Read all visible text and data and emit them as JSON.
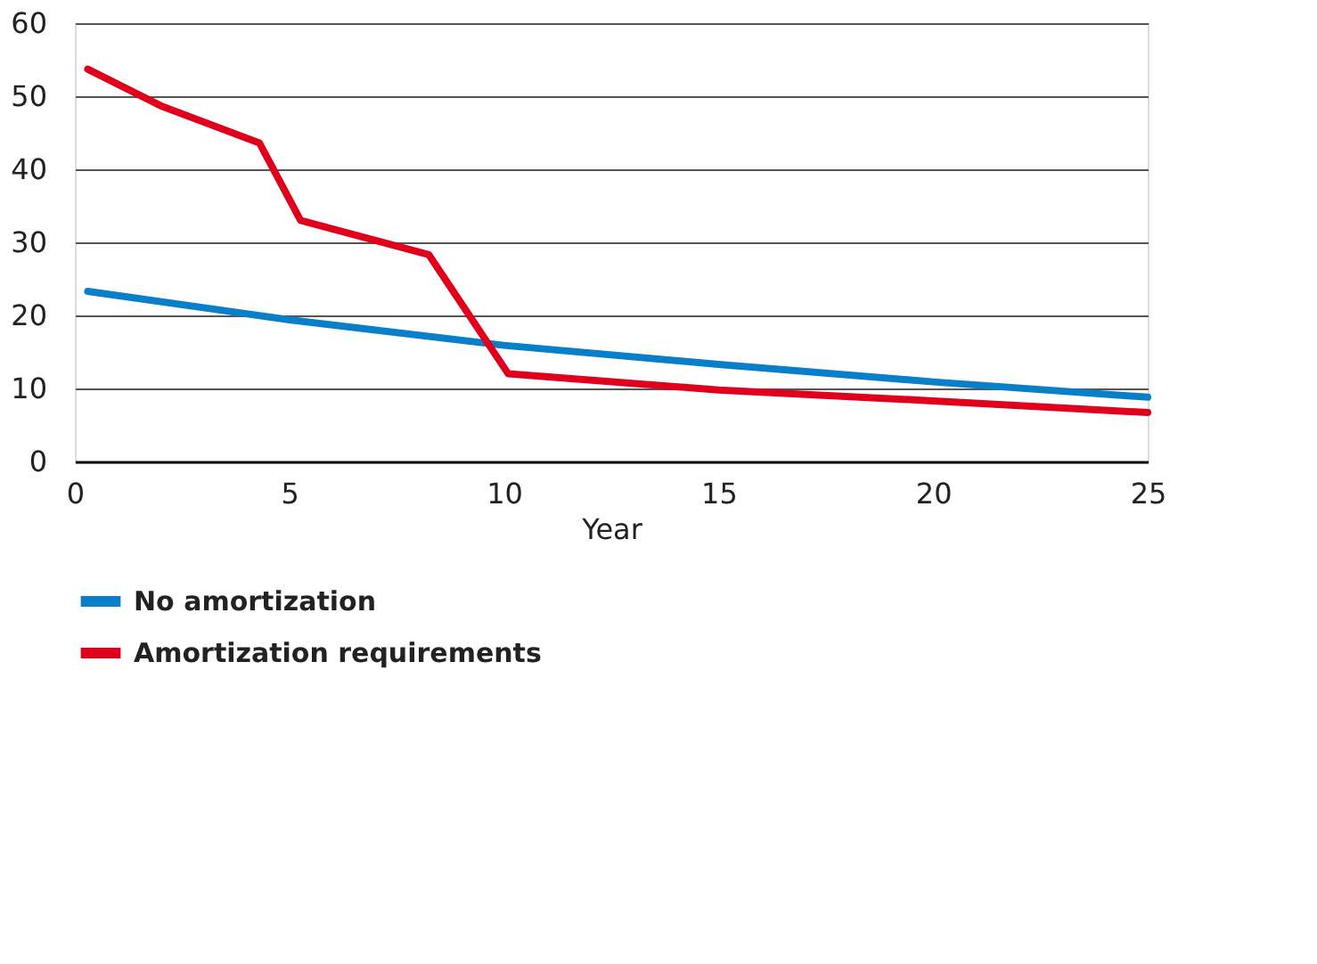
{
  "chart_data": {
    "type": "line",
    "xlabel": "Year",
    "xlim": [
      0,
      25
    ],
    "xticks": [
      0,
      5,
      10,
      15,
      20,
      25
    ],
    "ylim": [
      0,
      60
    ],
    "yticks": [
      0,
      10,
      20,
      30,
      40,
      50,
      60
    ],
    "grid": "y",
    "legend": "bottom",
    "marker": "none",
    "line_style": "solid",
    "series": [
      {
        "name": "No amortization",
        "color": "#0a7fc9",
        "x": [
          0.3,
          5,
          10,
          15,
          20,
          25
        ],
        "values": [
          23.3,
          19.4,
          15.9,
          13.3,
          10.9,
          8.8
        ]
      },
      {
        "name": "Amortization requirements",
        "color": "#e0001b",
        "x": [
          0.3,
          2,
          4.3,
          5.26,
          8.25,
          10.1,
          15,
          20,
          25
        ],
        "values": [
          53.7,
          48.7,
          43.6,
          33.0,
          28.3,
          12.0,
          9.8,
          8.3,
          6.7
        ]
      }
    ]
  }
}
